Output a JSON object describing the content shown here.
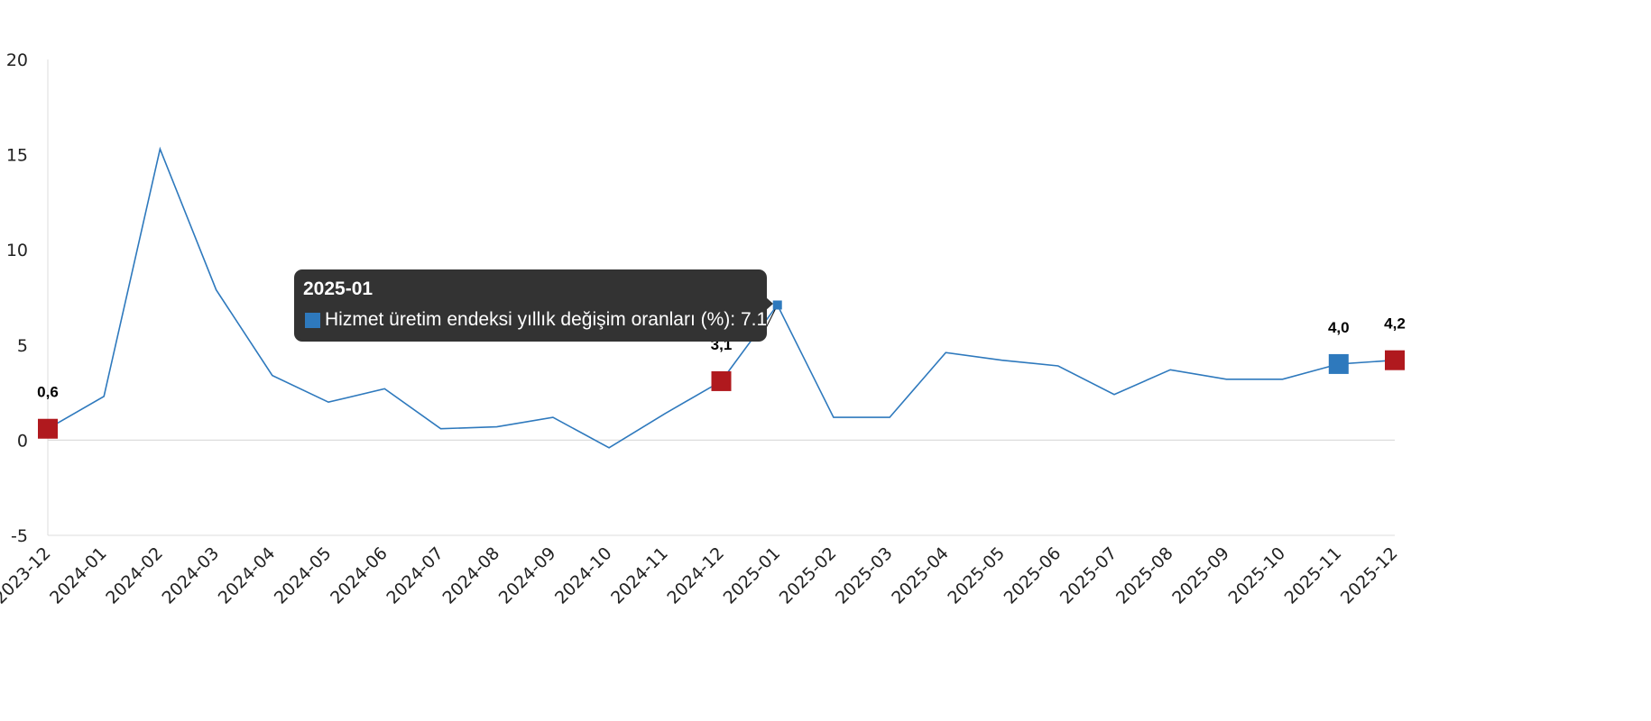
{
  "chart_data": {
    "type": "line",
    "categories": [
      "2023-12",
      "2024-01",
      "2024-02",
      "2024-03",
      "2024-04",
      "2024-05",
      "2024-06",
      "2024-07",
      "2024-08",
      "2024-09",
      "2024-10",
      "2024-11",
      "2024-12",
      "2025-01",
      "2025-02",
      "2025-03",
      "2025-04",
      "2025-05",
      "2025-06",
      "2025-07",
      "2025-08",
      "2025-09",
      "2025-10",
      "2025-11",
      "2025-12"
    ],
    "series": [
      {
        "name": "Hizmet üretim endeksi yıllık değişim oranları (%)",
        "color": "#2e79bd",
        "values": [
          0.6,
          2.3,
          15.3,
          7.9,
          3.4,
          2.0,
          2.7,
          0.6,
          0.7,
          1.2,
          -0.4,
          1.4,
          3.1,
          7.1,
          1.2,
          1.2,
          4.6,
          4.2,
          3.9,
          2.4,
          3.7,
          3.2,
          3.2,
          4.0,
          4.2
        ]
      }
    ],
    "y_ticks": [
      "-5",
      "0",
      "5",
      "10",
      "15",
      "20"
    ],
    "ylim": [
      -5,
      20
    ],
    "grid": false,
    "highlighted_points": [
      {
        "category": "2023-12",
        "label": "0,6",
        "color": "#b0191e"
      },
      {
        "category": "2024-12",
        "label": "3,1",
        "color": "#b0191e"
      },
      {
        "category": "2025-11",
        "label": "4,0",
        "color": "#2e79bd"
      },
      {
        "category": "2025-12",
        "label": "4,2",
        "color": "#b0191e"
      }
    ]
  },
  "tooltip": {
    "title": "2025-01",
    "series_label": "Hizmet üretim endeksi yıllık değişim oranları (%): 7.1",
    "swatch_color": "#2e79bd",
    "category": "2025-01"
  }
}
